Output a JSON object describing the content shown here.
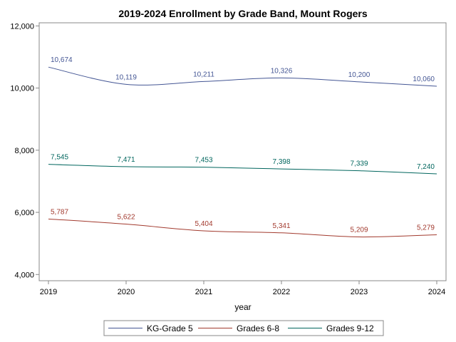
{
  "chart_data": {
    "type": "line",
    "title": "2019-2024 Enrollment by Grade Band, Mount Rogers",
    "xlabel": "year",
    "ylabel": "",
    "x": [
      2019,
      2020,
      2021,
      2022,
      2023,
      2024
    ],
    "x_tick_labels": [
      "2019",
      "2020",
      "2021",
      "2022",
      "2023",
      "2024"
    ],
    "ylim": [
      3800,
      12100
    ],
    "y_ticks": [
      4000,
      6000,
      8000,
      10000,
      12000
    ],
    "y_tick_labels": [
      "4,000",
      "6,000",
      "8,000",
      "10,000",
      "12,000"
    ],
    "grid": false,
    "legend_position": "bottom",
    "series": [
      {
        "name": "KG-Grade 5",
        "color": "#445694",
        "values": [
          10674,
          10119,
          10211,
          10326,
          10200,
          10060
        ],
        "labels": [
          "10,674",
          "10,119",
          "10,211",
          "10,326",
          "10,200",
          "10,060"
        ]
      },
      {
        "name": "Grades 6-8",
        "color": "#A23A2E",
        "values": [
          5787,
          5622,
          5404,
          5341,
          5209,
          5279
        ],
        "labels": [
          "5,787",
          "5,622",
          "5,404",
          "5,341",
          "5,209",
          "5,279"
        ]
      },
      {
        "name": "Grades 9-12",
        "color": "#01665E",
        "values": [
          7545,
          7471,
          7453,
          7398,
          7339,
          7240
        ],
        "labels": [
          "7,545",
          "7,471",
          "7,453",
          "7,398",
          "7,339",
          "7,240"
        ]
      }
    ]
  }
}
